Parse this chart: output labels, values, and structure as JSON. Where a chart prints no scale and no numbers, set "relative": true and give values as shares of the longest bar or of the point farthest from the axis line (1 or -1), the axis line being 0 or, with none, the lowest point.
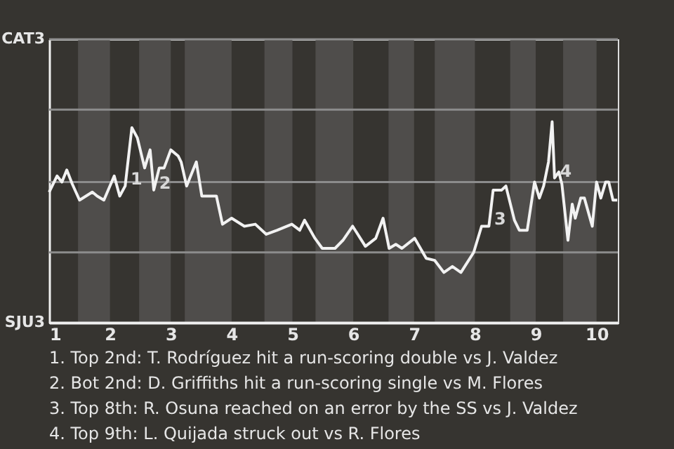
{
  "chart_data": {
    "type": "line",
    "relative": true,
    "x": [
      1.0,
      1.13,
      1.21,
      1.29,
      1.38,
      1.5,
      1.71,
      1.79,
      1.9,
      2.07,
      2.16,
      2.25,
      2.36,
      2.45,
      2.57,
      2.66,
      2.72,
      2.81,
      2.89,
      3.0,
      3.12,
      3.17,
      3.26,
      3.42,
      3.51,
      3.75,
      3.85,
      4.0,
      4.21,
      4.39,
      4.57,
      4.75,
      4.99,
      5.12,
      5.2,
      5.37,
      5.49,
      5.7,
      5.83,
      5.99,
      6.2,
      6.37,
      6.49,
      6.59,
      6.7,
      6.8,
      7.01,
      7.2,
      7.34,
      7.49,
      7.63,
      7.77,
      7.98,
      8.11,
      8.23,
      8.3,
      8.44,
      8.51,
      8.65,
      8.73,
      8.86,
      8.98,
      9.06,
      9.13,
      9.21,
      9.27,
      9.31,
      9.38,
      9.43,
      9.53,
      9.6,
      9.65,
      9.74,
      9.8,
      9.93,
      10.0,
      10.07,
      10.15,
      10.2,
      10.27,
      10.34
    ],
    "series": [
      {
        "color": "#f2f2f2",
        "values": [
          0.65,
          0.73,
          0.7,
          0.76,
          0.69,
          0.61,
          0.65,
          0.63,
          0.61,
          0.73,
          0.63,
          0.68,
          0.97,
          0.92,
          0.77,
          0.86,
          0.66,
          0.77,
          0.77,
          0.86,
          0.83,
          0.8,
          0.68,
          0.8,
          0.63,
          0.63,
          0.49,
          0.52,
          0.48,
          0.49,
          0.44,
          0.46,
          0.49,
          0.46,
          0.51,
          0.42,
          0.37,
          0.37,
          0.41,
          0.48,
          0.38,
          0.42,
          0.52,
          0.37,
          0.39,
          0.37,
          0.42,
          0.32,
          0.31,
          0.25,
          0.28,
          0.25,
          0.35,
          0.48,
          0.48,
          0.66,
          0.66,
          0.68,
          0.51,
          0.46,
          0.46,
          0.7,
          0.62,
          0.68,
          0.8,
          1,
          0.72,
          0.75,
          0.69,
          0.41,
          0.59,
          0.52,
          0.62,
          0.62,
          0.48,
          0.7,
          0.62,
          0.7,
          0.7,
          0.61,
          0.61
        ]
      }
    ],
    "xlim": [
      1,
      10.35
    ],
    "xticks": [
      1,
      2,
      3,
      4,
      5,
      6,
      7,
      8,
      9,
      10
    ],
    "ref_lines": [
      {
        "axis": "y",
        "value": 0,
        "label": "SJU3",
        "color": "#f0f0f0"
      },
      {
        "axis": "y",
        "value": 0.35,
        "color": "#8c8c8c"
      },
      {
        "axis": "y",
        "value": 0.7,
        "color": "#8c8c8c"
      },
      {
        "axis": "y",
        "value": 1.06,
        "color": "#8c8c8c"
      },
      {
        "axis": "y",
        "value": 1.41,
        "label": "CAT3",
        "color": "#8c8c8c"
      }
    ],
    "bands": [
      {
        "axis": "x",
        "from": 1.475,
        "to": 2,
        "color": "#4f4d4b"
      },
      {
        "axis": "x",
        "from": 2.48,
        "to": 3,
        "color": "#4f4d4b"
      },
      {
        "axis": "x",
        "from": 3.23,
        "to": 4,
        "color": "#4f4d4b"
      },
      {
        "axis": "x",
        "from": 4.54,
        "to": 5,
        "color": "#4f4d4b"
      },
      {
        "axis": "x",
        "from": 5.38,
        "to": 6,
        "color": "#4f4d4b"
      },
      {
        "axis": "x",
        "from": 6.58,
        "to": 7,
        "color": "#4f4d4b"
      },
      {
        "axis": "x",
        "from": 7.34,
        "to": 8,
        "color": "#4f4d4b"
      },
      {
        "axis": "x",
        "from": 8.58,
        "to": 9,
        "color": "#4f4d4b"
      },
      {
        "axis": "x",
        "from": 9.45,
        "to": 10,
        "color": "#4f4d4b"
      }
    ],
    "annotations": [
      {
        "text": "1",
        "x": 2.25,
        "y": 0.68
      },
      {
        "text": "2",
        "x": 2.72,
        "y": 0.66
      },
      {
        "text": "3",
        "x": 8.23,
        "y": 0.48
      },
      {
        "text": "4",
        "x": 9.31,
        "y": 0.72
      },
      "1. Top 2nd: T. Rodríguez hit a run-scoring double vs J. Valdez",
      "2. Bot 2nd: D. Griffiths hit a run-scoring single vs M. Flores",
      "3. Top 8th: R. Osuna reached on an error by the SS vs J. Valdez",
      "4. Top 9th: L. Quijada struck out vs R. Flores"
    ]
  }
}
